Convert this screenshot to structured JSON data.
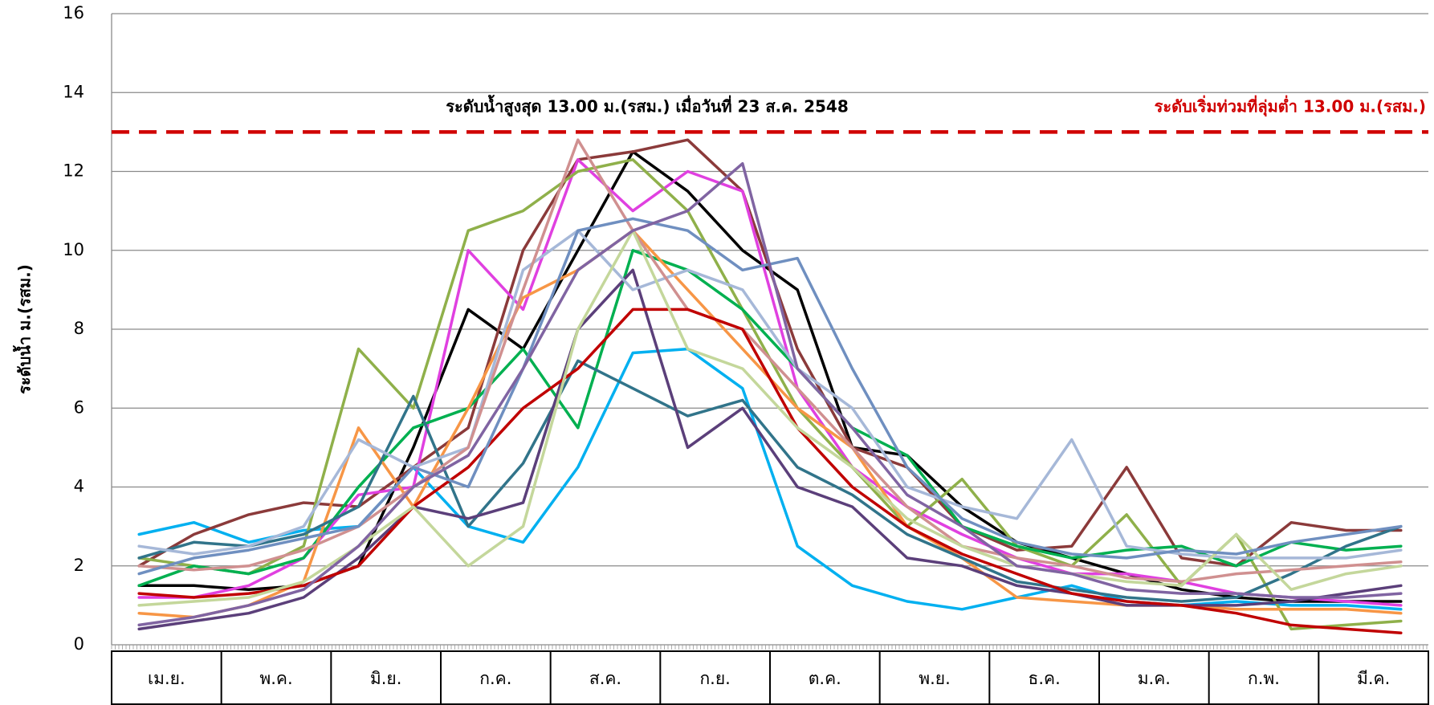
{
  "chart_data": {
    "type": "line",
    "y_label": "ระดับน้ำ ม.(รสม.)",
    "annotation": "ระดับน้ำสูงสุด 13.00 ม.(รสม.) เมื่อวันที่ 23 ส.ค. 2548",
    "threshold": {
      "value": 13,
      "label": "ระดับเริ่มท่วมที่ลุ่มต่ำ 13.00 ม.(รสม.)",
      "color": "#d00000"
    },
    "months": [
      "เม.ย.",
      "พ.ค.",
      "มิ.ย.",
      "ก.ค.",
      "ส.ค.",
      "ก.ย.",
      "ต.ค.",
      "พ.ย.",
      "ธ.ค.",
      "ม.ค.",
      "ก.พ.",
      "มี.ค."
    ],
    "ylim": [
      0,
      16
    ],
    "yticks": [
      0,
      2,
      4,
      6,
      8,
      10,
      12,
      14,
      16
    ],
    "grid": true,
    "series": [
      {
        "color": "#000000",
        "values": [
          1.5,
          1.5,
          1.4,
          1.5,
          2.0,
          5.0,
          8.5,
          7.5,
          10.0,
          12.5,
          11.5,
          10.0,
          9.0,
          5.0,
          4.8,
          3.5,
          2.6,
          2.2,
          1.8,
          1.4,
          1.2,
          1.1,
          1.1,
          1.1
        ]
      },
      {
        "color": "#00b0f0",
        "values": [
          2.8,
          3.1,
          2.6,
          2.9,
          3.0,
          4.5,
          3.0,
          2.6,
          4.5,
          7.4,
          7.5,
          6.5,
          2.5,
          1.5,
          1.1,
          0.9,
          1.2,
          1.5,
          1.1,
          1.0,
          1.1,
          1.0,
          1.0,
          0.9
        ]
      },
      {
        "color": "#8b3a3a",
        "values": [
          2.0,
          2.8,
          3.3,
          3.6,
          3.5,
          4.5,
          5.5,
          10.0,
          12.3,
          12.5,
          12.8,
          11.5,
          7.5,
          5.0,
          4.5,
          3.0,
          2.4,
          2.5,
          4.5,
          2.2,
          2.0,
          3.1,
          2.9,
          2.9
        ]
      },
      {
        "color": "#e040e0",
        "values": [
          1.2,
          1.2,
          1.5,
          2.2,
          3.8,
          4.0,
          10.0,
          8.5,
          12.3,
          11.0,
          12.0,
          11.5,
          6.5,
          4.5,
          3.5,
          2.8,
          2.2,
          1.8,
          1.8,
          1.6,
          1.3,
          1.2,
          1.1,
          1.0
        ]
      },
      {
        "color": "#8fb04a",
        "values": [
          2.2,
          2.0,
          1.8,
          2.5,
          7.5,
          6.0,
          10.5,
          11.0,
          12.0,
          12.3,
          11.0,
          8.5,
          6.0,
          4.5,
          3.0,
          4.2,
          2.5,
          2.0,
          3.3,
          1.5,
          2.8,
          0.4,
          0.5,
          0.6
        ]
      },
      {
        "color": "#00b050",
        "values": [
          1.5,
          2.0,
          1.8,
          2.2,
          4.0,
          5.5,
          6.0,
          7.5,
          5.5,
          10.0,
          9.5,
          8.5,
          7.0,
          5.5,
          4.8,
          3.0,
          2.5,
          2.2,
          2.4,
          2.5,
          2.0,
          2.6,
          2.4,
          2.5
        ]
      },
      {
        "color": "#f79646",
        "values": [
          0.8,
          0.7,
          1.0,
          1.6,
          5.5,
          3.5,
          6.0,
          8.8,
          9.5,
          10.5,
          9.0,
          7.5,
          6.0,
          5.0,
          3.0,
          2.2,
          1.2,
          1.1,
          1.0,
          1.0,
          0.9,
          0.9,
          0.9,
          0.8
        ]
      },
      {
        "color": "#31748a",
        "values": [
          2.2,
          2.6,
          2.5,
          2.8,
          3.5,
          6.3,
          3.0,
          4.6,
          7.2,
          6.5,
          5.8,
          6.2,
          4.5,
          3.8,
          2.8,
          2.2,
          1.6,
          1.4,
          1.2,
          1.1,
          1.2,
          1.8,
          2.5,
          3.0
        ]
      },
      {
        "color": "#5b3f7a",
        "values": [
          0.4,
          0.6,
          0.8,
          1.2,
          2.2,
          3.5,
          3.2,
          3.6,
          8.0,
          9.5,
          5.0,
          6.0,
          4.0,
          3.5,
          2.2,
          2.0,
          1.5,
          1.3,
          1.0,
          1.0,
          1.0,
          1.1,
          1.3,
          1.5
        ]
      },
      {
        "color": "#a6b8d8",
        "values": [
          2.5,
          2.3,
          2.5,
          3.0,
          5.2,
          4.5,
          5.0,
          9.5,
          10.5,
          9.0,
          9.5,
          9.0,
          7.0,
          6.0,
          4.0,
          3.5,
          3.2,
          5.2,
          2.5,
          2.3,
          2.2,
          2.2,
          2.2,
          2.4
        ]
      },
      {
        "color": "#d09090",
        "values": [
          2.0,
          1.9,
          2.0,
          2.4,
          3.0,
          4.0,
          5.0,
          9.0,
          12.8,
          10.5,
          8.5,
          8.0,
          6.5,
          5.0,
          3.5,
          2.5,
          2.2,
          2.0,
          1.7,
          1.6,
          1.8,
          1.9,
          2.0,
          2.1
        ]
      },
      {
        "color": "#c00000",
        "values": [
          1.3,
          1.2,
          1.3,
          1.5,
          2.0,
          3.5,
          4.5,
          6.0,
          7.0,
          8.5,
          8.5,
          8.0,
          5.5,
          4.0,
          3.0,
          2.3,
          1.8,
          1.3,
          1.1,
          1.0,
          0.8,
          0.5,
          0.4,
          0.3
        ]
      },
      {
        "color": "#c4d79b",
        "values": [
          1.0,
          1.1,
          1.2,
          1.6,
          2.5,
          3.5,
          2.0,
          3.0,
          8.0,
          10.5,
          7.5,
          7.0,
          5.5,
          4.5,
          3.2,
          2.5,
          2.0,
          1.8,
          1.6,
          1.5,
          2.8,
          1.4,
          1.8,
          2.0
        ]
      },
      {
        "color": "#6f8fc0",
        "values": [
          1.8,
          2.2,
          2.4,
          2.7,
          3.0,
          4.5,
          4.0,
          7.0,
          10.5,
          10.8,
          10.5,
          9.5,
          9.8,
          7.0,
          4.5,
          3.2,
          2.6,
          2.3,
          2.2,
          2.4,
          2.3,
          2.6,
          2.8,
          3.0
        ]
      },
      {
        "color": "#8064a2",
        "values": [
          0.5,
          0.7,
          1.0,
          1.4,
          2.5,
          4.0,
          4.8,
          7.0,
          9.5,
          10.5,
          11.0,
          12.2,
          7.0,
          5.5,
          3.8,
          3.0,
          2.0,
          1.8,
          1.4,
          1.3,
          1.3,
          1.2,
          1.2,
          1.3
        ]
      }
    ]
  }
}
